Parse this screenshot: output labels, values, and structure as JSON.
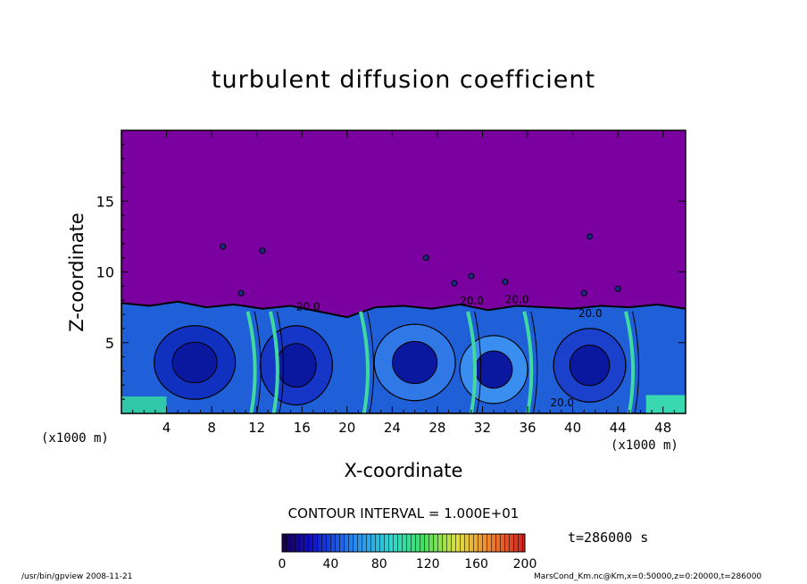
{
  "chart_data": {
    "type": "heatmap",
    "title": "turbulent diffusion coefficient",
    "xlabel": "X-coordinate",
    "ylabel": "Z-coordinate",
    "x_unit": "(x1000 m)",
    "xlim": [
      0,
      50
    ],
    "ylim": [
      0,
      20
    ],
    "x_ticks": [
      "4",
      "8",
      "12",
      "16",
      "20",
      "24",
      "28",
      "32",
      "36",
      "40",
      "44",
      "48"
    ],
    "y_ticks": [
      "5",
      "10",
      "15"
    ],
    "contour_interval_text": "CONTOUR INTERVAL = 1.000E+01",
    "contour_labels": [
      "20.0",
      "20.0",
      "20.0",
      "20.0",
      "20.0"
    ],
    "colorbar": {
      "range": [
        0,
        200
      ],
      "ticks": [
        "0",
        "40",
        "80",
        "120",
        "160",
        "200"
      ]
    },
    "time_label": "t=286000 s",
    "mixed_layer_top_km": [
      7.8,
      7.6,
      7.9,
      7.5,
      7.7,
      7.4,
      7.6,
      7.2,
      6.8,
      7.5,
      7.6,
      7.4,
      7.7,
      7.3,
      7.6,
      7.5,
      7.4,
      7.6,
      7.5,
      7.7,
      7.4
    ]
  },
  "footer": {
    "left": "/usr/bin/gpview   2008-11-21",
    "right": "MarsCond_Km.nc@Km,x=0:50000,z=0:20000,t=286000"
  },
  "colors": {
    "background_field": "#7a00a0",
    "low": "#0a1aa8",
    "mid": "#2f7ae8",
    "high": "#40e0b0"
  }
}
